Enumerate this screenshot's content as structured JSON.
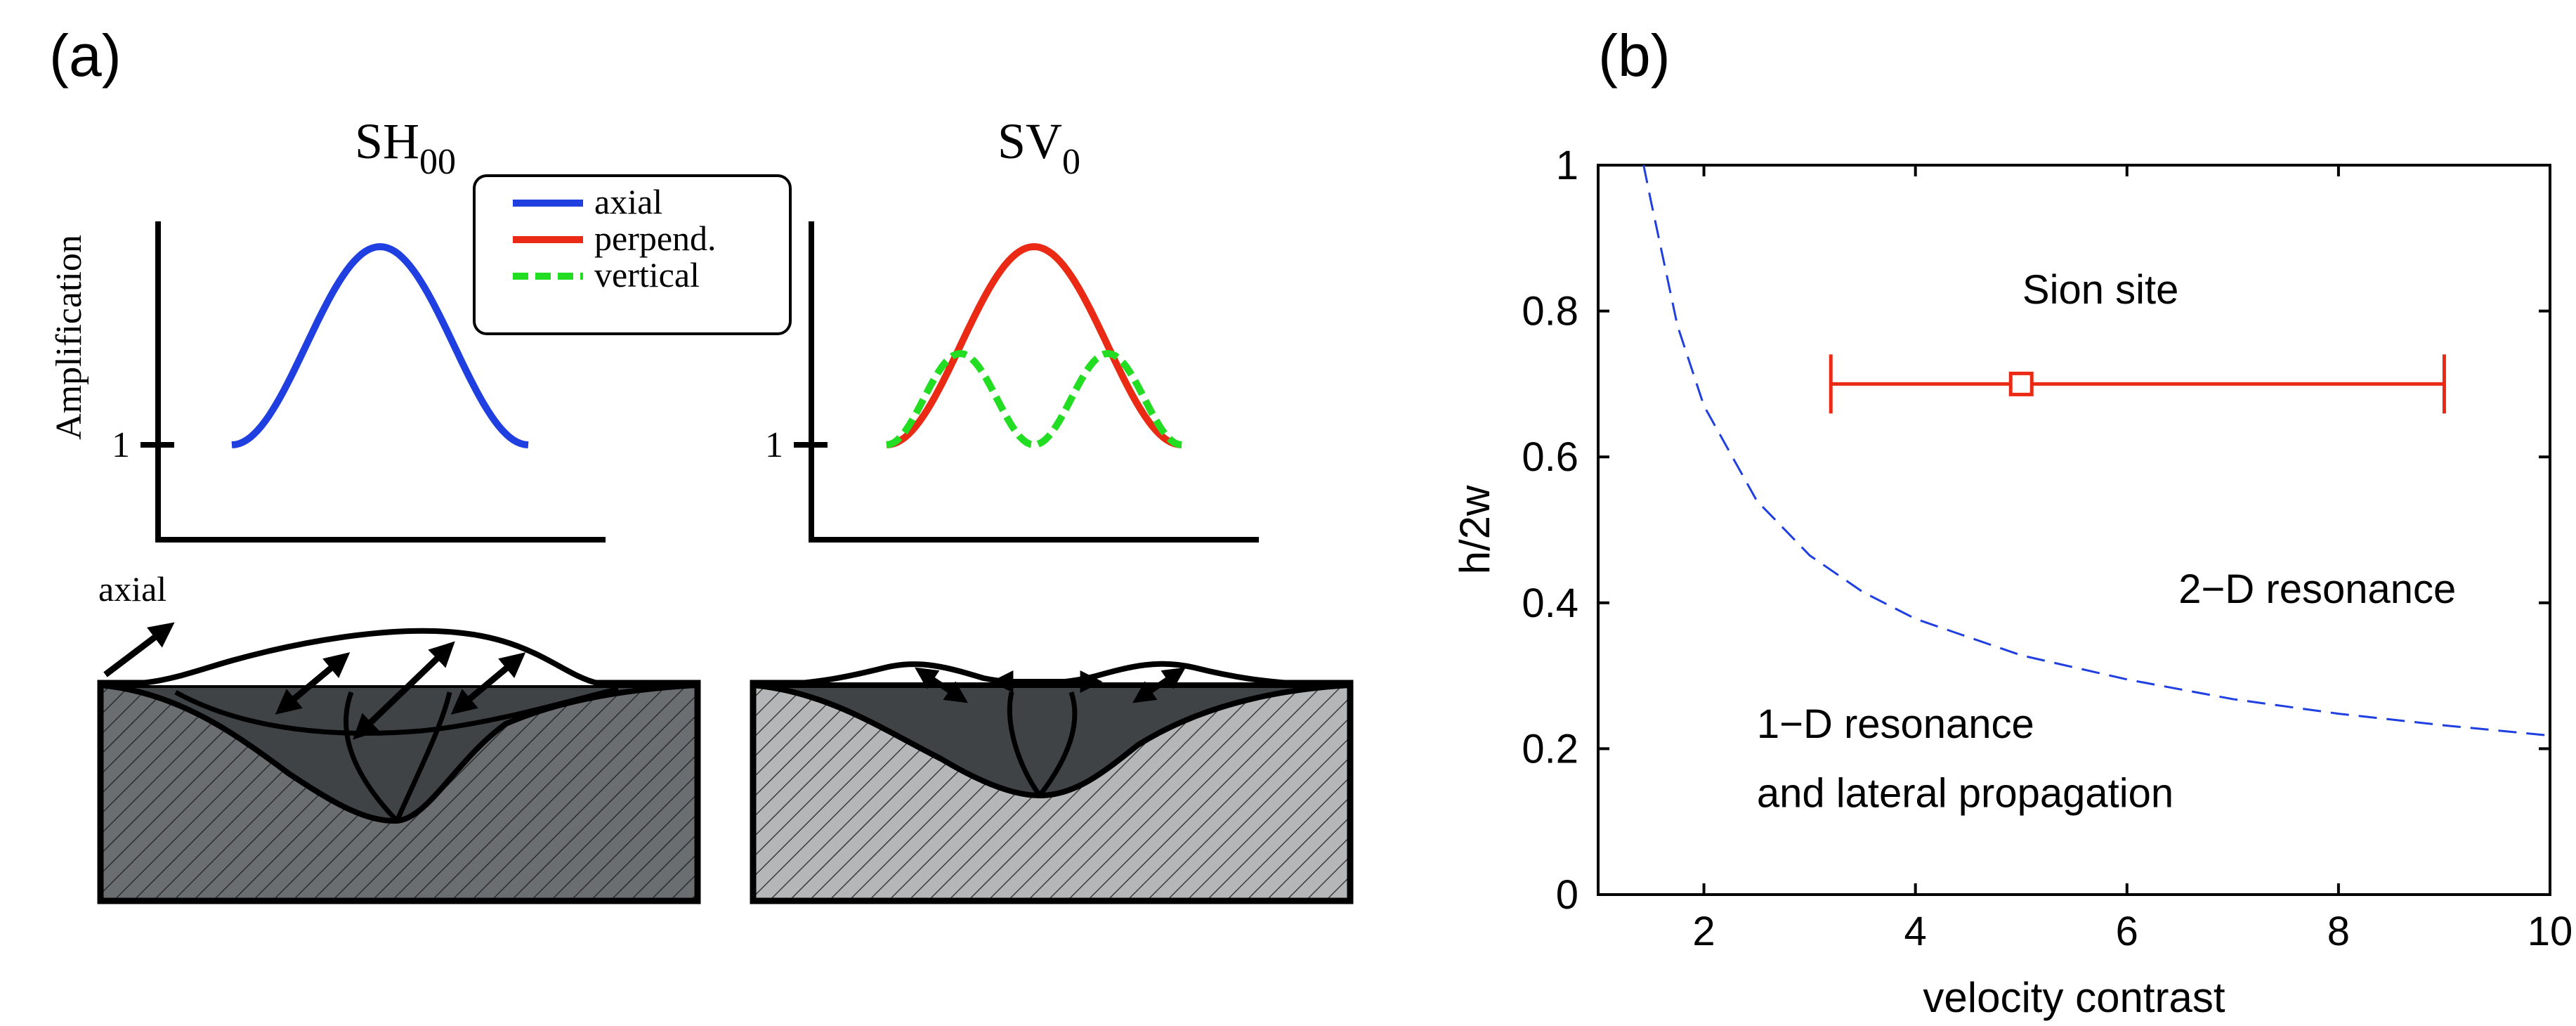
{
  "panel_a": {
    "label": "(a)",
    "ylabel": "Amplification",
    "sh": {
      "title_main": "SH",
      "title_sub": "00",
      "tick": "1"
    },
    "sv": {
      "title_main": "SV",
      "title_sub": "0",
      "tick": "1"
    },
    "legend": {
      "placement": "top-center",
      "items": [
        {
          "label": "axial",
          "color": "#1f3fe0",
          "dash": false
        },
        {
          "label": "perpend.",
          "color": "#ea2a14",
          "dash": false
        },
        {
          "label": "vertical",
          "color": "#22dd22",
          "dash": true
        }
      ]
    },
    "axial_label": "axial",
    "colors": {
      "valley_fill": "#404346",
      "hatch_dark": "#6b6e70",
      "hatch_light": "#b5b6b8"
    }
  },
  "panel_b": {
    "label": "(b)",
    "chart_data": {
      "type": "line",
      "xlabel": "velocity contrast",
      "ylabel": "h/2w",
      "xlim": [
        1,
        10
      ],
      "ylim": [
        0,
        1
      ],
      "xticks": [
        2,
        4,
        6,
        8,
        10
      ],
      "yticks": [
        0,
        0.2,
        0.4,
        0.6,
        0.8,
        1
      ],
      "grid": false,
      "curve": {
        "style": "dashed",
        "color": "#1f3fe0",
        "x": [
          1.43,
          1.5,
          1.75,
          2.0,
          2.5,
          3.0,
          3.5,
          4.0,
          5.0,
          6.0,
          7.0,
          8.0,
          9.0,
          10.0
        ],
        "y": [
          1.0,
          0.95,
          0.78,
          0.67,
          0.54,
          0.465,
          0.415,
          0.378,
          0.328,
          0.295,
          0.268,
          0.248,
          0.232,
          0.218
        ]
      },
      "point": {
        "label": "Sion site",
        "x": 5.0,
        "y": 0.7,
        "xerr": [
          3.2,
          9.0
        ],
        "color": "#ea2a14"
      },
      "annotations": [
        {
          "text": "2−D resonance",
          "x": 7.8,
          "y": 0.4
        },
        {
          "text": "1−D resonance",
          "x": 2.5,
          "y": 0.215
        },
        {
          "text": "and lateral propagation",
          "x": 2.5,
          "y": 0.12
        }
      ]
    }
  }
}
